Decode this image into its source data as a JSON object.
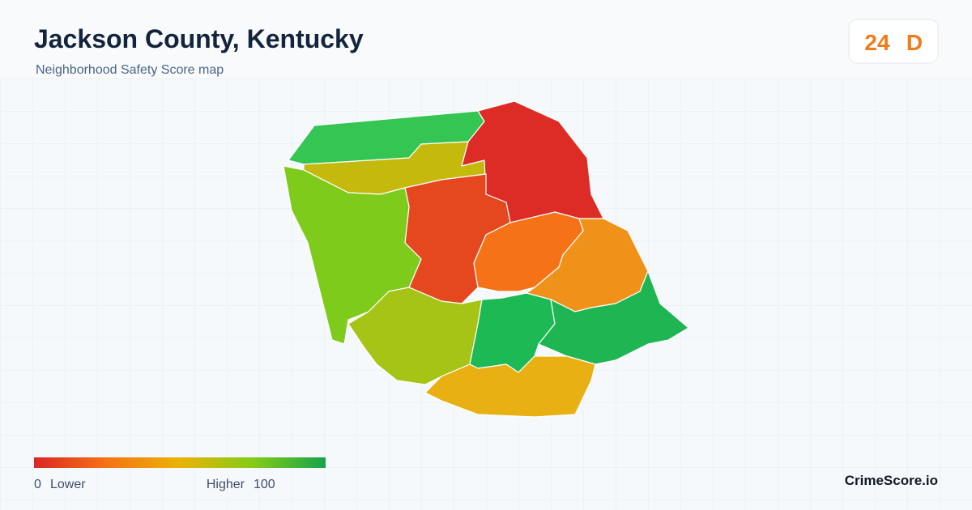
{
  "header": {
    "title": "Jackson County, Kentucky",
    "subtitle": "Neighborhood Safety Score map"
  },
  "score": {
    "value": "24",
    "grade": "D"
  },
  "legend": {
    "min": "0",
    "min_label": "Lower",
    "max_label": "Higher",
    "max": "100"
  },
  "brand": "CrimeScore.io"
}
